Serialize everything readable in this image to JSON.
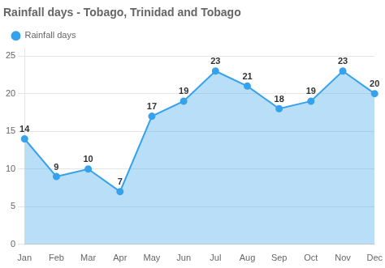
{
  "chart_data": {
    "type": "area",
    "title": "Rainfall days - Tobago, Trinidad and Tobago",
    "categories": [
      "Jan",
      "Feb",
      "Mar",
      "Apr",
      "May",
      "Jun",
      "Jul",
      "Aug",
      "Sep",
      "Oct",
      "Nov",
      "Dec"
    ],
    "series": [
      {
        "name": "Rainfall days",
        "values": [
          14,
          9,
          10,
          7,
          17,
          19,
          23,
          21,
          18,
          19,
          23,
          20
        ]
      }
    ],
    "ylim": [
      0,
      26
    ],
    "yticks": [
      0,
      5,
      10,
      15,
      20,
      25
    ],
    "grid": "y",
    "legend": "upper left",
    "marker": "circle",
    "data_labels": true
  }
}
